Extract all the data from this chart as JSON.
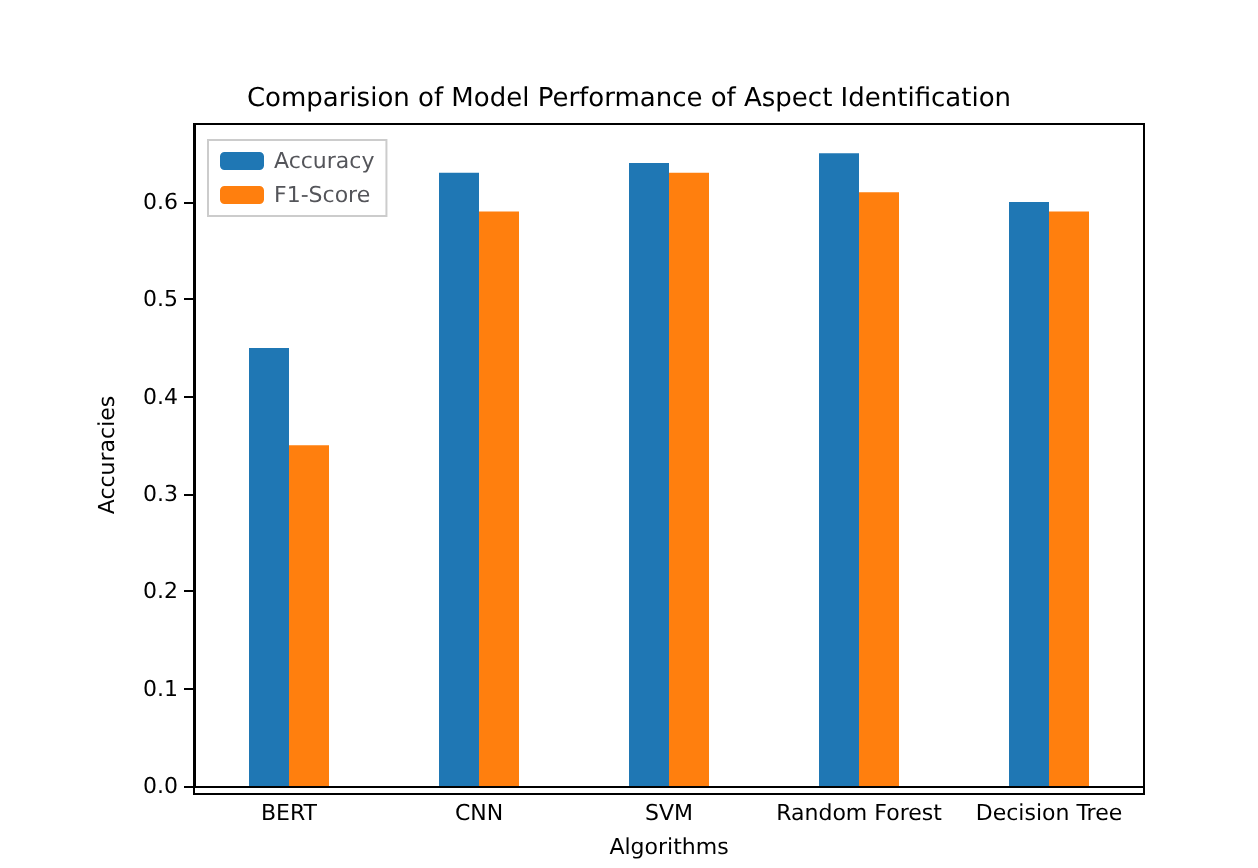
{
  "chart_data": {
    "type": "bar",
    "title": "Comparision of Model Performance of Aspect Identification",
    "xlabel": "Algorithms",
    "ylabel": "Accuracies",
    "categories": [
      "BERT",
      "CNN",
      "SVM",
      "Random Forest",
      "Decision Tree"
    ],
    "series": [
      {
        "name": "Accuracy",
        "color": "#1f77b4",
        "values": [
          0.45,
          0.63,
          0.64,
          0.65,
          0.6
        ]
      },
      {
        "name": "F1-Score",
        "color": "#ff7f0e",
        "values": [
          0.35,
          0.59,
          0.63,
          0.61,
          0.59
        ]
      }
    ],
    "ylim": [
      0,
      0.68
    ],
    "yticks": [
      {
        "value": 0,
        "label": "0.0"
      },
      {
        "value": 0.1,
        "label": "0.1"
      },
      {
        "value": 0.2,
        "label": "0.2"
      },
      {
        "value": 0.3,
        "label": "0.3"
      },
      {
        "value": 0.4,
        "label": "0.4"
      },
      {
        "value": 0.5,
        "label": "0.5"
      },
      {
        "value": 0.6,
        "label": "0.6"
      }
    ],
    "legend": "top left",
    "grid": false
  }
}
